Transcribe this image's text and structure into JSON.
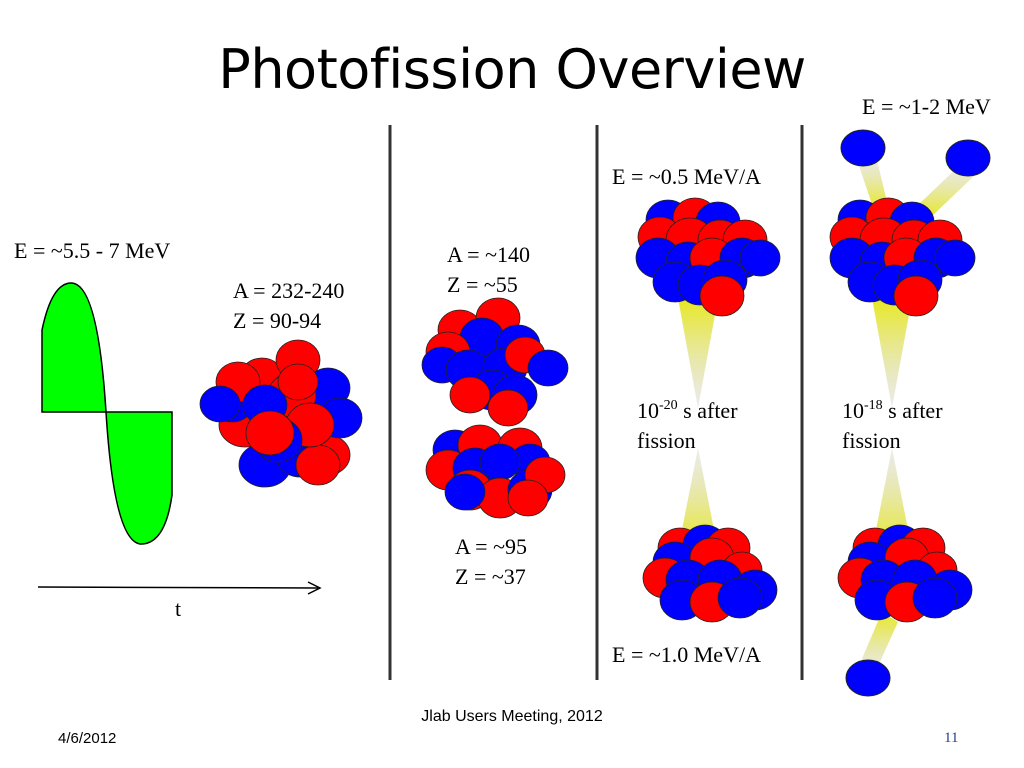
{
  "title": "Photofission Overview",
  "labels": {
    "photon_energy": "E = ~5.5 - 7 MeV",
    "time_axis": "t",
    "target_A": "A = 232-240",
    "target_Z": "Z = 90-94",
    "heavy_A": "A = ~140",
    "heavy_Z": "Z = ~55",
    "light_A": "A = ~95",
    "light_Z": "Z = ~37",
    "excitation_heavy": "E = ~0.5 MeV/A",
    "excitation_light": "E = ~1.0 MeV/A",
    "time1_base": "10",
    "time1_exp": "-20",
    "time1_tail": " s after",
    "time1_line2": "fission",
    "time2_base": "10",
    "time2_exp": "-18",
    "time2_tail": " s after",
    "time2_line2": "fission",
    "neutron_energy": "E = ~1-2 MeV"
  },
  "footer": {
    "date": "4/6/2012",
    "event": "Jlab Users Meeting, 2012",
    "page": "11"
  },
  "colors": {
    "proton": "#ff0000",
    "neutron": "#0000ff",
    "photon_wave": "#00ff00",
    "cone": "#e8e820",
    "divider": "#333333"
  }
}
